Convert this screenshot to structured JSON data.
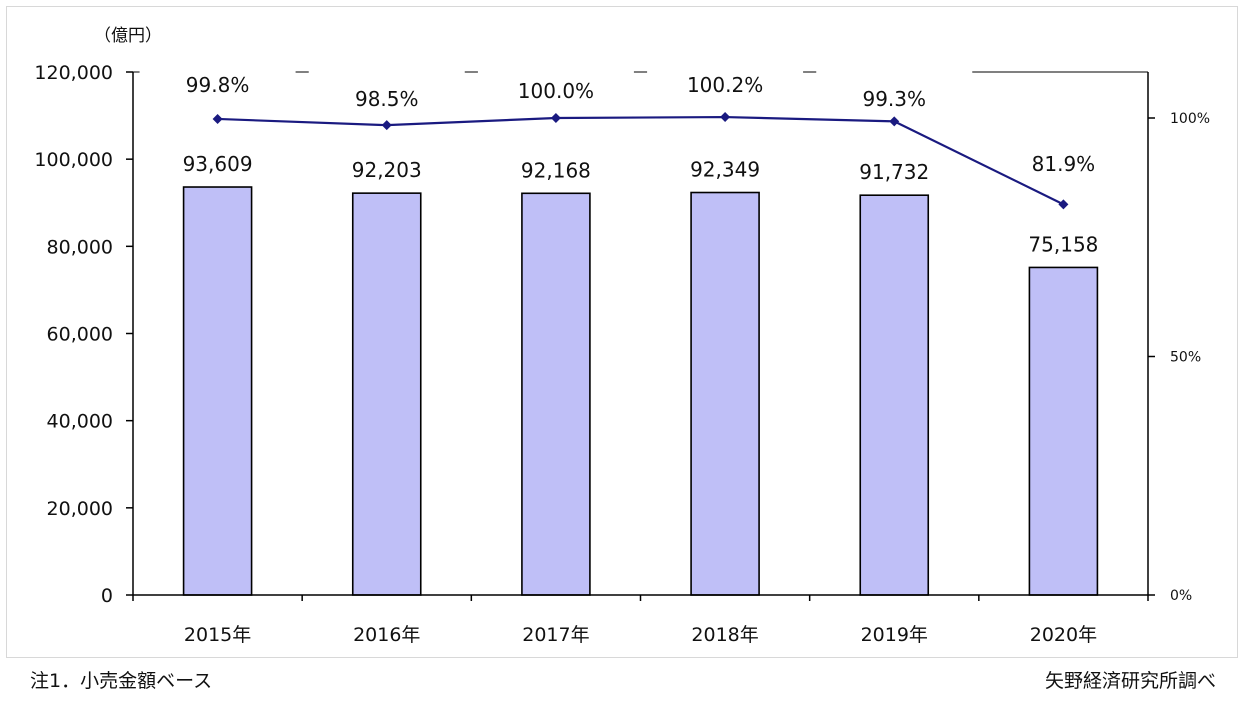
{
  "chart_data": {
    "type": "bar",
    "unit_label": "（億円）",
    "categories": [
      "2015年",
      "2016年",
      "2017年",
      "2018年",
      "2019年",
      "2020年"
    ],
    "series": [
      {
        "values": [
          93609,
          92203,
          92168,
          92349,
          91732,
          75158
        ],
        "labels": [
          "93,609",
          "92,203",
          "92,168",
          "92,349",
          "91,732",
          "75,158"
        ],
        "axis": "left",
        "color": "#bfbff7",
        "edge_color": "#000000"
      },
      {
        "type": "line",
        "values": [
          99.8,
          98.5,
          100.0,
          100.2,
          99.3,
          81.9
        ],
        "labels": [
          "99.8%",
          "98.5%",
          "100.0%",
          "100.2%",
          "99.3%",
          "81.9%"
        ],
        "axis": "right",
        "color": "#1a1a80"
      }
    ],
    "left_axis": {
      "ylim": [
        0,
        120000
      ],
      "ticks": [
        "0",
        "20,000",
        "40,000",
        "60,000",
        "80,000",
        "100,000",
        "120,000"
      ]
    },
    "right_axis": {
      "ylim": [
        0,
        100
      ],
      "ticks": [
        "0%",
        "50%",
        "100%"
      ]
    },
    "grid": false
  },
  "notes": {
    "left": "注1．小売金額ベース",
    "right": "矢野経済研究所調べ"
  }
}
